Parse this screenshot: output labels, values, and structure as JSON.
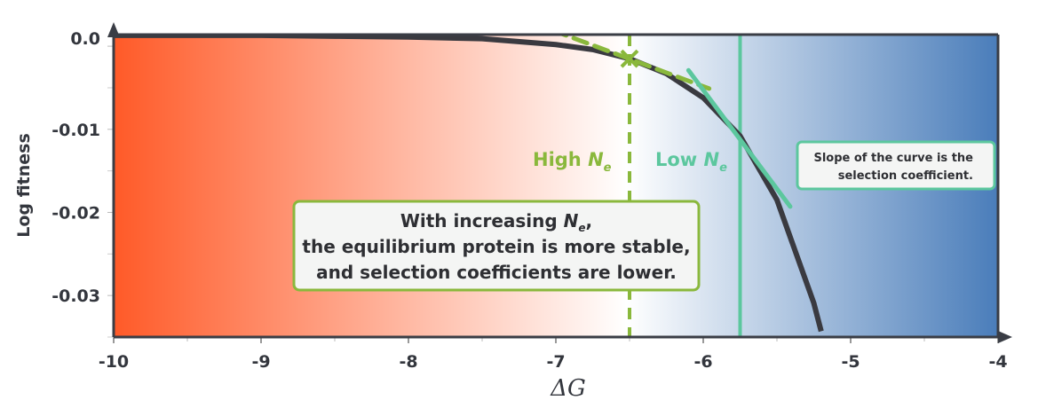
{
  "chart_data": {
    "type": "line",
    "title": "",
    "xlabel": "ΔG",
    "ylabel": "Log fitness",
    "xlim": [
      -10,
      -4
    ],
    "ylim": [
      -0.035,
      0.0014
    ],
    "x_ticks": [
      "-10",
      "-9",
      "-8",
      "-7",
      "-6",
      "-5",
      "-4"
    ],
    "y_ticks": [
      "0.0",
      "-0.01",
      "-0.02",
      "-0.03"
    ],
    "grid": false,
    "background_gradient": {
      "left": "#ff5a28",
      "middle": "#ffffff",
      "right": "#4a7dba"
    },
    "series": [
      {
        "color": "#3a3a40",
        "x": [
          -10,
          -9,
          -8.5,
          -8,
          -7.5,
          -7,
          -6.75,
          -6.5,
          -6.25,
          -6,
          -5.75,
          -5.5,
          -5.25,
          -5.2
        ],
        "y": [
          0.0013,
          0.0013,
          0.0012,
          0.0011,
          0.0009,
          0.0002,
          -0.0004,
          -0.0015,
          -0.0033,
          -0.0062,
          -0.0108,
          -0.0185,
          -0.0309,
          -0.0343
        ]
      }
    ],
    "high_ne": {
      "label": "High ",
      "symbol": "N",
      "subscript": "e",
      "color": "#8ab83c",
      "x": -6.5,
      "marker_y": -0.0015,
      "tangent": {
        "x": [
          -7.02,
          -5.96
        ],
        "y": [
          0.0019,
          -0.0051
        ]
      }
    },
    "low_ne": {
      "label": "Low ",
      "symbol": "N",
      "subscript": "e",
      "color": "#5cc79e",
      "x": -5.75,
      "tangent": {
        "x": [
          -6.1,
          -5.41
        ],
        "y": [
          -0.0029,
          -0.0193
        ]
      }
    },
    "annotations": {
      "main": {
        "line1_prefix": "With increasing ",
        "line1_symbol": "N",
        "line1_sub": "e",
        "line1_suffix": ",",
        "line2": "the equilibrium protein is more stable,",
        "line3": "and selection coefficients are lower."
      },
      "slope": {
        "line1": "Slope of the curve is the",
        "line2": "selection coefficient."
      }
    }
  }
}
